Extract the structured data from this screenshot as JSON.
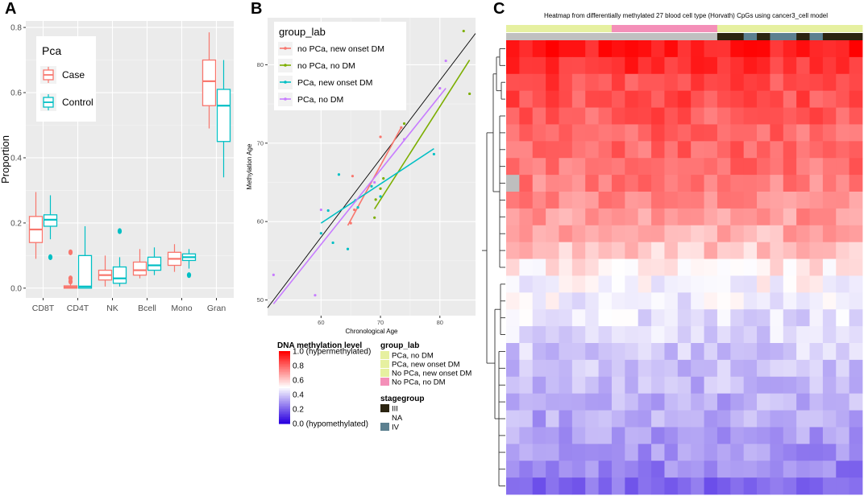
{
  "panels": {
    "a": "A",
    "b": "B",
    "c": "C"
  },
  "chart_data": [
    {
      "type": "box",
      "ylabel": "Proportion",
      "xlabel": "",
      "ylim": [
        -0.03,
        0.82
      ],
      "yticks": [
        0.0,
        0.2,
        0.4,
        0.6,
        0.8
      ],
      "ytick_labels": [
        "0.0",
        "0.2",
        "0.4",
        "0.6",
        "0.8"
      ],
      "categories": [
        "CD8T",
        "CD4T",
        "NK",
        "Bcell",
        "Mono",
        "Gran"
      ],
      "legend": {
        "title": "Pca",
        "entries": [
          {
            "name": "Case",
            "color": "#f8766d"
          },
          {
            "name": "Control",
            "color": "#00bfc4"
          }
        ]
      },
      "series": [
        {
          "name": "Case",
          "color": "#f8766d",
          "boxes": [
            {
              "category": "CD8T",
              "min": 0.09,
              "q1": 0.14,
              "median": 0.18,
              "q3": 0.22,
              "max": 0.295,
              "outliers": []
            },
            {
              "category": "CD4T",
              "min": 0.0,
              "q1": 0.0,
              "median": 0.003,
              "q3": 0.007,
              "max": 0.012,
              "outliers": [
                0.11,
                0.02,
                0.03
              ]
            },
            {
              "category": "NK",
              "min": 0.005,
              "q1": 0.025,
              "median": 0.04,
              "q3": 0.055,
              "max": 0.1,
              "outliers": []
            },
            {
              "category": "Bcell",
              "min": 0.03,
              "q1": 0.04,
              "median": 0.055,
              "q3": 0.08,
              "max": 0.12,
              "outliers": []
            },
            {
              "category": "Mono",
              "min": 0.05,
              "q1": 0.07,
              "median": 0.09,
              "q3": 0.11,
              "max": 0.135,
              "outliers": []
            },
            {
              "category": "Gran",
              "min": 0.49,
              "q1": 0.56,
              "median": 0.635,
              "q3": 0.7,
              "max": 0.785,
              "outliers": []
            }
          ]
        },
        {
          "name": "Control",
          "color": "#00bfc4",
          "boxes": [
            {
              "category": "CD8T",
              "min": 0.15,
              "q1": 0.19,
              "median": 0.21,
              "q3": 0.225,
              "max": 0.285,
              "outliers": [
                0.095
              ]
            },
            {
              "category": "CD4T",
              "min": 0.0,
              "q1": 0.0,
              "median": 0.005,
              "q3": 0.1,
              "max": 0.19,
              "outliers": []
            },
            {
              "category": "NK",
              "min": 0.005,
              "q1": 0.015,
              "median": 0.03,
              "q3": 0.065,
              "max": 0.095,
              "outliers": [
                0.175
              ]
            },
            {
              "category": "Bcell",
              "min": 0.04,
              "q1": 0.055,
              "median": 0.07,
              "q3": 0.095,
              "max": 0.125,
              "outliers": []
            },
            {
              "category": "Mono",
              "min": 0.06,
              "q1": 0.085,
              "median": 0.095,
              "q3": 0.105,
              "max": 0.12,
              "outliers": [
                0.04
              ]
            },
            {
              "category": "Gran",
              "min": 0.34,
              "q1": 0.45,
              "median": 0.56,
              "q3": 0.61,
              "max": 0.7,
              "outliers": []
            }
          ]
        }
      ]
    },
    {
      "type": "scatter",
      "xlabel": "Chronological Age",
      "ylabel": "Methylation Age",
      "xlim": [
        51,
        86
      ],
      "ylim": [
        48,
        86
      ],
      "xticks": [
        60,
        70,
        80
      ],
      "yticks": [
        50,
        60,
        70,
        80
      ],
      "xtick_labels": [
        "60",
        "70",
        "80"
      ],
      "ytick_labels": [
        "50",
        "60",
        "70",
        "80"
      ],
      "identity_line": {
        "x1": 51,
        "y1": 49,
        "x2": 86,
        "y2": 84,
        "color": "#000000"
      },
      "legend": {
        "title": "group_lab",
        "position": "top-left"
      },
      "series": [
        {
          "name": "no PCa, new onset DM",
          "color": "#f8766d",
          "points": [
            [
              65,
              59.8
            ],
            [
              65.3,
              65.8
            ],
            [
              65.6,
              61.5
            ],
            [
              70,
              70.8
            ],
            [
              73.5,
              72
            ]
          ],
          "fit": [
            [
              64.5,
              59.5
            ],
            [
              73.5,
              72
            ]
          ]
        },
        {
          "name": "no PCa, no DM",
          "color": "#7cae00",
          "points": [
            [
              69,
              60.5
            ],
            [
              69.2,
              62.8
            ],
            [
              70,
              64.2
            ],
            [
              70.5,
              65.5
            ],
            [
              74,
              72.5
            ],
            [
              84,
              84.3
            ],
            [
              85,
              76.3
            ]
          ],
          "fit": [
            [
              69,
              61.6
            ],
            [
              85,
              80.6
            ]
          ]
        },
        {
          "name": "PCa, new onset DM",
          "color": "#00bfc4",
          "points": [
            [
              60,
              58.5
            ],
            [
              61.2,
              61.4
            ],
            [
              62,
              57.3
            ],
            [
              63,
              66
            ],
            [
              64.5,
              56.5
            ],
            [
              65.8,
              62.7
            ],
            [
              66.2,
              61.8
            ],
            [
              68.5,
              64.5
            ],
            [
              70,
              63.2
            ],
            [
              79,
              68.6
            ]
          ],
          "fit": [
            [
              60,
              59.8
            ],
            [
              79,
              69.3
            ]
          ]
        },
        {
          "name": "PCa, no DM",
          "color": "#c77cff",
          "points": [
            [
              52,
              53.2
            ],
            [
              59,
              50.6
            ],
            [
              60,
              61.5
            ],
            [
              69,
              65
            ],
            [
              74,
              70.5
            ],
            [
              81,
              80.5
            ],
            [
              80,
              77
            ]
          ],
          "fit": [
            [
              52,
              49.5
            ],
            [
              81,
              77
            ]
          ]
        }
      ]
    },
    {
      "type": "heatmap",
      "title": "Heatmap from differentially methylated 27 blood cell type (Horvath) CpGs using cancer3_cell model",
      "n_rows": 27,
      "n_cols": 27,
      "annotation_tracks": [
        {
          "name": "group_lab",
          "levels": [
            {
              "label": "PCa, no DM",
              "color": "#e6f0a0"
            },
            {
              "label": "PCa, new onset DM",
              "color": "#e6f0a0"
            },
            {
              "label": "No PCa, new onset DM",
              "color": "#e6f0a0"
            },
            {
              "label": "No PCa, no DM",
              "color": "#f48fb8"
            }
          ],
          "column_levels": [
            "PCa, no DM",
            "PCa, no DM",
            "PCa, no DM",
            "PCa, no DM",
            "PCa, no DM",
            "PCa, no DM",
            "PCa, no DM",
            "PCa, no DM",
            "No PCa, no DM",
            "No PCa, no DM",
            "No PCa, no DM",
            "No PCa, no DM",
            "No PCa, no DM",
            "No PCa, no DM",
            "No PCa, no DM",
            "No PCa, no DM",
            "PCa, new onset DM",
            "PCa, new onset DM",
            "PCa, new onset DM",
            "PCa, new onset DM",
            "PCa, new onset DM",
            "PCa, new onset DM",
            "PCa, new onset DM",
            "PCa, new onset DM",
            "PCa, new onset DM",
            "PCa, new onset DM",
            "PCa, new onset DM"
          ]
        },
        {
          "name": "stagegroup",
          "levels": [
            {
              "label": "III",
              "color": "#2b2410"
            },
            {
              "label": "NA",
              "color": "#c0c0c0"
            },
            {
              "label": "IV",
              "color": "#5c8090"
            }
          ],
          "column_levels": [
            "NA",
            "NA",
            "NA",
            "NA",
            "NA",
            "NA",
            "NA",
            "NA",
            "NA",
            "NA",
            "NA",
            "NA",
            "NA",
            "NA",
            "NA",
            "NA",
            "III",
            "III",
            "IV",
            "III",
            "IV",
            "IV",
            "III",
            "IV",
            "III",
            "III",
            "III"
          ]
        }
      ],
      "color_scale": {
        "title": "DNA methylation level",
        "stops": [
          {
            "value": 0.0,
            "color": "#2a00e0"
          },
          {
            "value": 0.5,
            "color": "#ffffff"
          },
          {
            "value": 1.0,
            "color": "#ff0000"
          }
        ],
        "ticks": [
          {
            "value": 1.0,
            "label": "1.0 (hypermethylated)"
          },
          {
            "value": 0.8,
            "label": "0.8"
          },
          {
            "value": 0.6,
            "label": "0.6"
          },
          {
            "value": 0.4,
            "label": "0.4"
          },
          {
            "value": 0.2,
            "label": "0.2"
          },
          {
            "value": 0.0,
            "label": "0.0 (hypomethylated)"
          }
        ]
      },
      "row_means": [
        0.94,
        0.9,
        0.86,
        0.84,
        0.82,
        0.8,
        0.79,
        0.78,
        0.75,
        0.73,
        0.7,
        0.66,
        0.61,
        0.55,
        0.5,
        0.47,
        0.44,
        0.42,
        0.4,
        0.38,
        0.36,
        0.34,
        0.33,
        0.31,
        0.29,
        0.26,
        0.22
      ],
      "missing_cells": [
        [
          8,
          0
        ]
      ]
    }
  ]
}
